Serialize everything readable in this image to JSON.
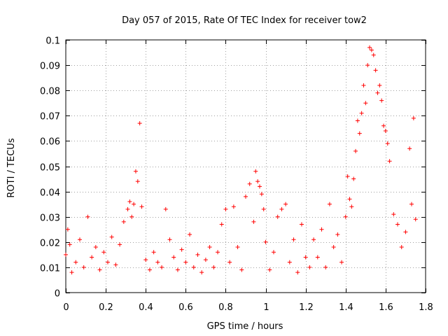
{
  "chart_data": {
    "type": "scatter",
    "title": "Day 057 of 2015, Rate Of TEC Index for receiver tow2",
    "xlabel": "GPS time / hours",
    "ylabel": "ROTI / TECUs",
    "xlim": [
      0,
      1.8
    ],
    "ylim": [
      0,
      0.1
    ],
    "x_ticks": [
      "0",
      "0.2",
      "0.4",
      "0.6",
      "0.8",
      "1",
      "1.2",
      "1.4",
      "1.6",
      "1.8"
    ],
    "y_ticks": [
      "0",
      "0.01",
      "0.02",
      "0.03",
      "0.04",
      "0.05",
      "0.06",
      "0.07",
      "0.08",
      "0.09",
      "0.1"
    ],
    "x_tick_values": [
      0,
      0.2,
      0.4,
      0.6,
      0.8,
      1.0,
      1.2,
      1.4,
      1.6,
      1.8
    ],
    "y_tick_values": [
      0,
      0.01,
      0.02,
      0.03,
      0.04,
      0.05,
      0.06,
      0.07,
      0.08,
      0.09,
      0.1
    ],
    "grid": true,
    "marker": "+",
    "color": "#ff0000",
    "series": [
      {
        "name": "ROTI",
        "x": [
          0.0,
          0.01,
          0.02,
          0.03,
          0.05,
          0.07,
          0.09,
          0.11,
          0.13,
          0.15,
          0.17,
          0.19,
          0.21,
          0.23,
          0.25,
          0.27,
          0.29,
          0.31,
          0.32,
          0.33,
          0.34,
          0.35,
          0.36,
          0.37,
          0.38,
          0.4,
          0.42,
          0.44,
          0.46,
          0.48,
          0.5,
          0.52,
          0.54,
          0.56,
          0.58,
          0.6,
          0.62,
          0.64,
          0.66,
          0.68,
          0.7,
          0.72,
          0.74,
          0.76,
          0.78,
          0.8,
          0.82,
          0.84,
          0.86,
          0.88,
          0.9,
          0.92,
          0.94,
          0.95,
          0.96,
          0.97,
          0.98,
          0.99,
          1.0,
          1.02,
          1.04,
          1.06,
          1.08,
          1.1,
          1.12,
          1.14,
          1.16,
          1.18,
          1.2,
          1.22,
          1.24,
          1.26,
          1.28,
          1.3,
          1.32,
          1.34,
          1.36,
          1.38,
          1.4,
          1.41,
          1.42,
          1.43,
          1.44,
          1.45,
          1.46,
          1.47,
          1.48,
          1.49,
          1.5,
          1.51,
          1.52,
          1.53,
          1.54,
          1.55,
          1.56,
          1.57,
          1.58,
          1.59,
          1.6,
          1.61,
          1.62,
          1.64,
          1.66,
          1.68,
          1.7,
          1.72,
          1.73,
          1.74,
          1.75
        ],
        "y": [
          0.015,
          0.025,
          0.019,
          0.008,
          0.012,
          0.021,
          0.01,
          0.03,
          0.014,
          0.018,
          0.009,
          0.016,
          0.012,
          0.022,
          0.011,
          0.019,
          0.028,
          0.033,
          0.036,
          0.03,
          0.035,
          0.048,
          0.044,
          0.067,
          0.034,
          0.013,
          0.009,
          0.016,
          0.012,
          0.01,
          0.033,
          0.021,
          0.014,
          0.009,
          0.017,
          0.012,
          0.023,
          0.01,
          0.015,
          0.008,
          0.013,
          0.018,
          0.01,
          0.016,
          0.027,
          0.033,
          0.012,
          0.034,
          0.018,
          0.009,
          0.038,
          0.043,
          0.028,
          0.048,
          0.044,
          0.042,
          0.039,
          0.033,
          0.02,
          0.009,
          0.016,
          0.03,
          0.033,
          0.035,
          0.012,
          0.021,
          0.008,
          0.027,
          0.014,
          0.01,
          0.021,
          0.014,
          0.025,
          0.01,
          0.035,
          0.018,
          0.023,
          0.012,
          0.03,
          0.046,
          0.037,
          0.034,
          0.045,
          0.056,
          0.068,
          0.063,
          0.071,
          0.082,
          0.075,
          0.09,
          0.097,
          0.096,
          0.094,
          0.088,
          0.079,
          0.082,
          0.076,
          0.066,
          0.064,
          0.059,
          0.052,
          0.031,
          0.027,
          0.018,
          0.024,
          0.057,
          0.035,
          0.069,
          0.029
        ]
      }
    ]
  }
}
